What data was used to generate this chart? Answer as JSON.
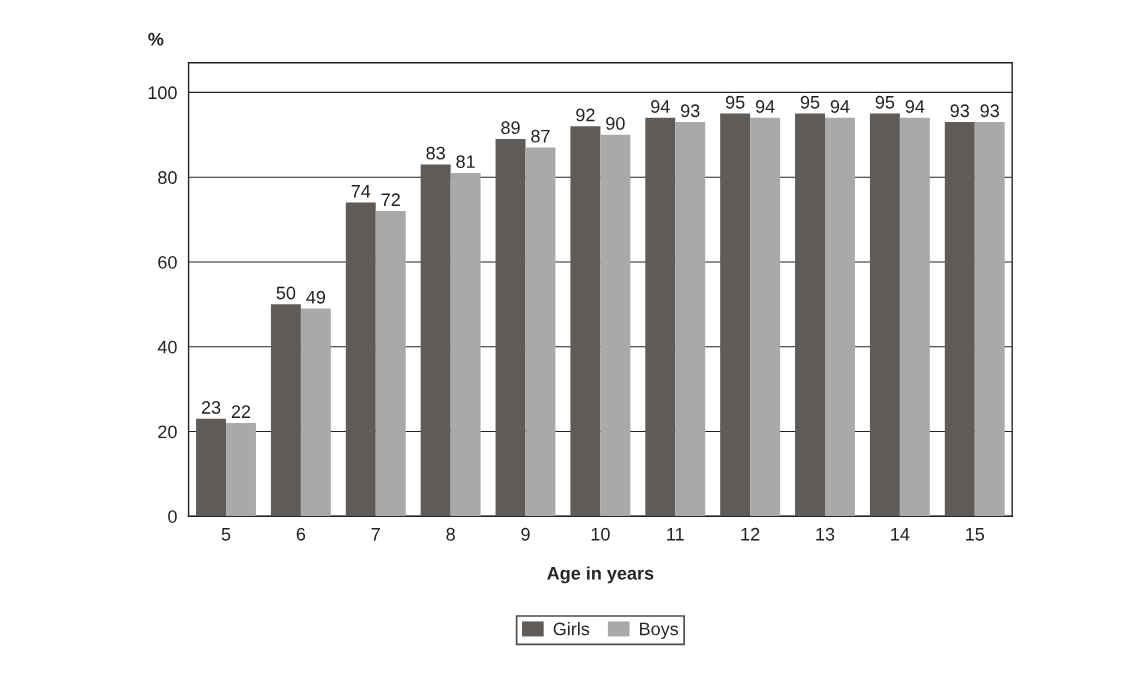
{
  "chart_data": {
    "type": "bar",
    "xlabel": "Age in years",
    "ylabel": "%",
    "categories": [
      "5",
      "6",
      "7",
      "8",
      "9",
      "10",
      "11",
      "12",
      "13",
      "14",
      "15"
    ],
    "series": [
      {
        "name": "Girls",
        "color": "#5f5b58",
        "values": [
          23,
          50,
          74,
          83,
          89,
          92,
          94,
          95,
          95,
          95,
          93
        ]
      },
      {
        "name": "Boys",
        "color": "#a9a9a9",
        "values": [
          22,
          49,
          72,
          81,
          87,
          90,
          93,
          94,
          94,
          94,
          93
        ]
      }
    ],
    "ylim": [
      0,
      107
    ],
    "yticks": [
      0,
      20,
      40,
      60,
      80,
      100
    ],
    "grid": "y",
    "legend": "bottom",
    "data_labels": true
  }
}
